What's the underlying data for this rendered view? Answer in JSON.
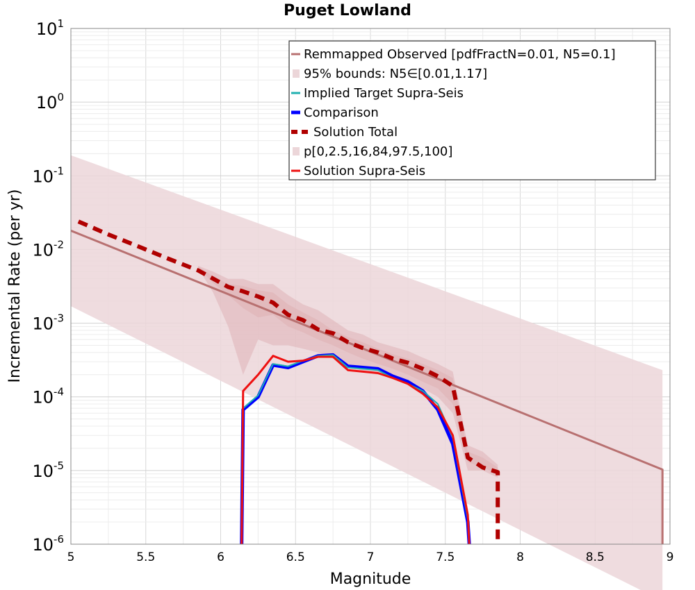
{
  "chart_data": {
    "type": "line",
    "title": "Puget Lowland",
    "xlabel": "Magnitude",
    "ylabel": "Incremental Rate (per yr)",
    "xlim": [
      5,
      9
    ],
    "ylim": [
      1e-06,
      10
    ],
    "y_scale": "log",
    "grid": true,
    "legend_position": "top-right",
    "x_ticks": [
      "5",
      "5.5",
      "6",
      "6.5",
      "7",
      "7.5",
      "8",
      "8.5",
      "9"
    ],
    "y_ticks": [
      {
        "base": "10",
        "exp": "1"
      },
      {
        "base": "10",
        "exp": "0"
      },
      {
        "base": "10",
        "exp": "-1"
      },
      {
        "base": "10",
        "exp": "-2"
      },
      {
        "base": "10",
        "exp": "-3"
      },
      {
        "base": "10",
        "exp": "-4"
      },
      {
        "base": "10",
        "exp": "-5"
      },
      {
        "base": "10",
        "exp": "-6"
      }
    ],
    "legend": [
      {
        "label": "Remmapped Observed [pdfFractN=0.01, N5=0.1]",
        "kind": "line",
        "color": "#b87070"
      },
      {
        "label": "95% bounds: N5∈[0.01,1.17]",
        "kind": "patch",
        "color": "#ecd6d9"
      },
      {
        "label": "Implied Target Supra-Seis",
        "kind": "line",
        "color": "#20b0b0"
      },
      {
        "label": "Comparison",
        "kind": "thick",
        "color": "#0000ff"
      },
      {
        "label": "Solution Total",
        "kind": "dashed",
        "color": "#b00000"
      },
      {
        "label": "p[0,2.5,16,84,97.5,100]",
        "kind": "patch",
        "color": "#ecd6d9"
      },
      {
        "label": "Solution Supra-Seis",
        "kind": "line",
        "color": "#ee1111"
      }
    ],
    "bounds_95": {
      "color": "#ecd6d9",
      "x": [
        5.0,
        8.95,
        8.95
      ],
      "lower": [
        0.0017,
        1.7e-07,
        1.7e-07
      ],
      "upper": [
        0.19,
        0.00023,
        1e-06
      ]
    },
    "percentile_bands": {
      "color": "#dfb3b6",
      "x": [
        5.85,
        5.95,
        6.05,
        6.15,
        6.25,
        6.35,
        6.45,
        6.55,
        6.65,
        6.75,
        6.85,
        6.95,
        7.05,
        7.15,
        7.25,
        7.35,
        7.45,
        7.55,
        7.65,
        7.75,
        7.85
      ],
      "outer_low": [
        0.0056,
        0.0026,
        0.0009,
        0.0002,
        0.0006,
        0.0005,
        0.0005,
        0.00045,
        0.0004,
        0.00033,
        0.00028,
        0.00022,
        0.0002,
        0.00018,
        0.00016,
        0.00013,
        0.0001,
        6e-05,
        1e-05,
        1e-05,
        8e-06
      ],
      "outer_high": [
        0.006,
        0.005,
        0.004,
        0.004,
        0.0034,
        0.0034,
        0.0024,
        0.0018,
        0.0015,
        0.0011,
        0.0008,
        0.0007,
        0.00055,
        0.00048,
        0.00042,
        0.00034,
        0.00028,
        0.00022,
        2.2e-05,
        1.8e-05,
        1.2e-05
      ],
      "inner_low": [
        0.0057,
        0.0035,
        0.0024,
        0.0016,
        0.0012,
        0.0013,
        0.0009,
        0.00075,
        0.0006,
        0.0005,
        0.0004,
        0.00033,
        0.00028,
        0.00024,
        0.0002,
        0.00016,
        0.00013,
        8e-05,
        1.3e-05,
        1.1e-05,
        9e-06
      ],
      "inner_high": [
        0.0059,
        0.0043,
        0.0034,
        0.0032,
        0.0028,
        0.0026,
        0.0018,
        0.0014,
        0.0011,
        0.0008,
        0.00065,
        0.00055,
        0.00045,
        0.00038,
        0.00033,
        0.00028,
        0.00023,
        0.00018,
        1.8e-05,
        1.5e-05,
        1.1e-05
      ]
    },
    "series": [
      {
        "name": "Remmapped Observed [pdfFractN=0.01, N5=0.1]",
        "color": "#b87070",
        "width": 3,
        "dash": "",
        "x": [
          5.0,
          8.95,
          8.95
        ],
        "y": [
          0.018,
          1.03e-05,
          1e-06
        ]
      },
      {
        "name": "Solution Total",
        "color": "#b00000",
        "width": 6,
        "dash": "14 9",
        "x": [
          5.05,
          5.25,
          5.45,
          5.65,
          5.85,
          6.05,
          6.15,
          6.25,
          6.35,
          6.45,
          6.55,
          6.65,
          6.75,
          6.85,
          6.95,
          7.05,
          7.15,
          7.25,
          7.35,
          7.45,
          7.55,
          7.65,
          7.75,
          7.85,
          7.85
        ],
        "y": [
          0.024,
          0.016,
          0.011,
          0.0075,
          0.0052,
          0.0031,
          0.0027,
          0.0023,
          0.0019,
          0.0013,
          0.0011,
          0.00082,
          0.00073,
          0.00055,
          0.00046,
          0.0004,
          0.00033,
          0.00029,
          0.00024,
          0.00019,
          0.00014,
          1.5e-05,
          1.1e-05,
          9.5e-06,
          1e-06
        ]
      },
      {
        "name": "Comparison",
        "color": "#0000ff",
        "width": 5,
        "dash": "",
        "x": [
          6.14,
          6.15,
          6.25,
          6.35,
          6.45,
          6.55,
          6.65,
          6.75,
          6.85,
          6.95,
          7.05,
          7.15,
          7.25,
          7.35,
          7.45,
          7.55,
          7.65,
          7.66
        ],
        "y": [
          1e-06,
          6.7e-05,
          0.0001,
          0.00027,
          0.00025,
          0.0003,
          0.00036,
          0.00037,
          0.00026,
          0.00025,
          0.00024,
          0.00019,
          0.00016,
          0.00012,
          6.7e-05,
          2.3e-05,
          2e-06,
          1e-06
        ]
      },
      {
        "name": "Implied Target Supra-Seis",
        "color": "#20b0b0",
        "width": 2,
        "dash": "",
        "x": [
          6.14,
          6.15,
          6.25,
          6.35,
          6.45,
          6.55,
          6.65,
          6.75,
          6.85,
          6.95,
          7.05,
          7.15,
          7.25,
          7.35,
          7.45,
          7.55,
          7.65,
          7.66
        ],
        "y": [
          1e-06,
          7e-05,
          0.000105,
          0.00028,
          0.00026,
          0.00031,
          0.00036,
          0.00037,
          0.00025,
          0.00024,
          0.00023,
          0.00018,
          0.00015,
          0.00012,
          8e-05,
          2.8e-05,
          2.2e-06,
          1e-06
        ]
      },
      {
        "name": "Solution Supra-Seis",
        "color": "#ee1111",
        "width": 3,
        "dash": "",
        "x": [
          6.14,
          6.15,
          6.25,
          6.35,
          6.45,
          6.55,
          6.65,
          6.75,
          6.85,
          6.95,
          7.05,
          7.15,
          7.25,
          7.35,
          7.45,
          7.55,
          7.65,
          7.66
        ],
        "y": [
          1e-06,
          0.00012,
          0.0002,
          0.00036,
          0.0003,
          0.00031,
          0.00035,
          0.00035,
          0.00023,
          0.00022,
          0.00021,
          0.00018,
          0.00015,
          0.00011,
          7.2e-05,
          3e-05,
          2.5e-06,
          1e-06
        ]
      }
    ]
  }
}
